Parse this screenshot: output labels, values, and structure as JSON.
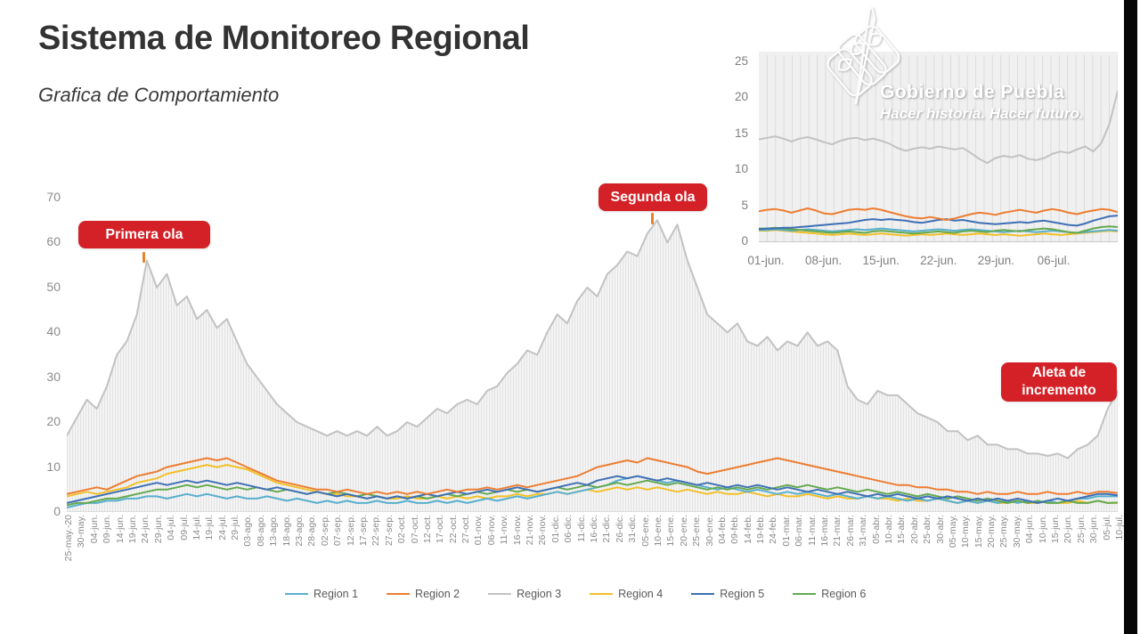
{
  "header": {
    "title": "Sistema de Monitoreo Regional",
    "subtitle": "Grafica de Comportamiento"
  },
  "logo": {
    "org": "Gobierno de Puebla",
    "tagline": "Hacer historia. Hacer futuro."
  },
  "annotations": {
    "first_wave": "Primera ola",
    "second_wave": "Segunda ola",
    "increase_alert": "Aleta de incremento"
  },
  "legend": {
    "items": [
      {
        "label": "Region 1",
        "color": "#58AFCE"
      },
      {
        "label": "Region 2",
        "color": "#ED7D31"
      },
      {
        "label": "Region 3",
        "color": "#C2C2C2"
      },
      {
        "label": "Region 4",
        "color": "#F2C029"
      },
      {
        "label": "Region 5",
        "color": "#3E6FB5"
      },
      {
        "label": "Region 6",
        "color": "#64A950"
      }
    ]
  },
  "chart_data": [
    {
      "id": "main",
      "type": "line",
      "title": "Grafica de Comportamiento",
      "xlabel": "",
      "ylabel": "",
      "ylim": [
        0,
        70
      ],
      "yticks": [
        0,
        10,
        20,
        30,
        40,
        50,
        60,
        70
      ],
      "grid": "vertical-daily-under-gray-area",
      "legend_position": "bottom",
      "x_tick_labels": [
        "25-may.-20",
        "30-may.",
        "04-jun.",
        "09-jun.",
        "14-jun.",
        "19-jun.",
        "24-jun.",
        "29-jun.",
        "04-jul.",
        "09-jul.",
        "14-jul.",
        "19-jul.",
        "24-jul.",
        "29-jul.",
        "03-ago.",
        "08-ago.",
        "13-ago.",
        "18-ago.",
        "23-ago.",
        "28-ago.",
        "02-sep.",
        "07-sep.",
        "12-sep.",
        "17-sep.",
        "22-sep.",
        "27-sep.",
        "02-oct.",
        "07-oct.",
        "12-oct.",
        "17-oct.",
        "22-oct.",
        "27-oct.",
        "01-nov.",
        "06-nov.",
        "11-nov.",
        "16-nov.",
        "21-nov.",
        "26-nov.",
        "01-dic.",
        "06-dic.",
        "11-dic.",
        "16-dic.",
        "21-dic.",
        "26-dic.",
        "31-dic.",
        "05-ene.",
        "10-ene.",
        "15-ene.",
        "20-ene.",
        "25-ene.",
        "30-ene.",
        "04-feb.",
        "09-feb.",
        "14-feb.",
        "19-feb.",
        "24-feb.",
        "01-mar.",
        "06-mar.",
        "11-mar.",
        "16-mar.",
        "21-mar.",
        "26-mar.",
        "31-mar.",
        "05-abr.",
        "10-abr.",
        "15-abr.",
        "20-abr.",
        "25-abr.",
        "30-abr.",
        "05-may.",
        "10-may.",
        "15-may.",
        "20-may.",
        "25-may.",
        "30-may.",
        "04-jun.",
        "10-jun.",
        "15-jun.",
        "20-jun.",
        "25-jun.",
        "30-jun.",
        "05-jul.",
        "10-jul."
      ],
      "series": [
        {
          "name": "Region 1",
          "color": "#58AFCE",
          "values": [
            1,
            1.5,
            2,
            2,
            2.5,
            2.5,
            3,
            3,
            3.5,
            3.5,
            3,
            3.5,
            4,
            3.5,
            4,
            3.5,
            3,
            3.5,
            3,
            3,
            3.5,
            3,
            2.5,
            3,
            2.5,
            2,
            2.5,
            2,
            2.5,
            2,
            2,
            2.5,
            2,
            2,
            2.5,
            2,
            2,
            2.5,
            2,
            2.5,
            2,
            2.5,
            3,
            2.5,
            3,
            3.5,
            3,
            3.5,
            4,
            4.5,
            4,
            4.5,
            5,
            5.5,
            6,
            7,
            7.5,
            8,
            7.5,
            7,
            6.5,
            7,
            6.5,
            6,
            5.5,
            5,
            5.5,
            5,
            4.5,
            5,
            4.5,
            4,
            4.5,
            4,
            4.5,
            4,
            3.5,
            4,
            3.5,
            3,
            3.5,
            3,
            3.5,
            3,
            2.5,
            3,
            2.5,
            3,
            2.5,
            2,
            2.5,
            2,
            2.5,
            2,
            2.5,
            2,
            2.5,
            2,
            2.5,
            2,
            2.5,
            3,
            3,
            3.5,
            3.5,
            3.5
          ]
        },
        {
          "name": "Region 2",
          "color": "#ED7D31",
          "values": [
            4,
            4.5,
            5,
            5.5,
            5,
            6,
            7,
            8,
            8.5,
            9,
            10,
            10.5,
            11,
            11.5,
            12,
            11.5,
            12,
            11,
            10,
            9,
            8,
            7,
            6.5,
            6,
            5.5,
            5,
            5,
            4.5,
            5,
            4.5,
            4,
            4.5,
            4,
            4.5,
            4,
            4.5,
            4,
            4.5,
            5,
            4.5,
            5,
            5,
            5.5,
            5,
            5.5,
            6,
            5.5,
            6,
            6.5,
            7,
            7.5,
            8,
            9,
            10,
            10.5,
            11,
            11.5,
            11,
            12,
            11.5,
            11,
            10.5,
            10,
            9,
            8.5,
            9,
            9.5,
            10,
            10.5,
            11,
            11.5,
            12,
            11.5,
            11,
            10.5,
            10,
            9.5,
            9,
            8.5,
            8,
            7.5,
            7,
            6.5,
            6,
            6,
            5.5,
            5.5,
            5,
            5,
            4.5,
            4.5,
            4,
            4.5,
            4,
            4,
            4.5,
            4,
            4,
            4.5,
            4,
            4,
            4.5,
            4,
            4.5,
            4.5,
            4.2
          ]
        },
        {
          "name": "Region 3",
          "color": "#C2C2C2",
          "area_fill": true,
          "values": [
            17,
            21,
            25,
            23,
            28,
            35,
            38,
            44,
            56,
            50,
            53,
            46,
            48,
            43,
            45,
            41,
            43,
            38,
            33,
            30,
            27,
            24,
            22,
            20,
            19,
            18,
            17,
            18,
            17,
            18,
            17,
            19,
            17,
            18,
            20,
            19,
            21,
            23,
            22,
            24,
            25,
            24,
            27,
            28,
            31,
            33,
            36,
            35,
            40,
            44,
            42,
            47,
            50,
            48,
            53,
            55,
            58,
            57,
            62,
            65,
            60,
            64,
            56,
            50,
            44,
            42,
            40,
            42,
            38,
            37,
            39,
            36,
            38,
            37,
            40,
            37,
            38,
            36,
            28,
            25,
            24,
            27,
            26,
            26,
            24,
            22,
            21,
            20,
            18,
            18,
            16,
            17,
            15,
            15,
            14,
            14,
            13,
            13,
            12.5,
            13,
            12,
            14,
            15,
            17,
            23,
            27
          ]
        },
        {
          "name": "Region 4",
          "color": "#F2C029",
          "values": [
            3.5,
            4,
            4.5,
            4,
            4.5,
            5,
            5.5,
            6.5,
            7,
            7.5,
            8.5,
            9,
            9.5,
            10,
            10.5,
            10,
            10.5,
            10,
            9.5,
            8.5,
            7.5,
            6.5,
            6,
            5.5,
            5,
            4.5,
            4,
            4,
            3.5,
            3.5,
            3,
            3.5,
            3,
            3,
            3.5,
            3,
            3,
            3.5,
            3,
            3.5,
            3,
            3.5,
            3,
            3.5,
            3.5,
            4,
            3.5,
            4,
            4,
            4.5,
            4,
            4.5,
            5,
            4.5,
            5,
            5.5,
            5,
            5.5,
            5,
            5.5,
            5,
            4.5,
            5,
            4.5,
            4,
            4.5,
            4,
            4,
            4.5,
            4,
            3.5,
            4,
            3.5,
            3.5,
            4,
            3.5,
            3,
            3.5,
            3,
            3,
            3.5,
            3,
            3,
            2.5,
            3,
            2.5,
            2.5,
            3,
            2.5,
            2,
            2.5,
            2,
            2.5,
            2,
            2,
            2.5,
            2,
            2,
            2.5,
            2,
            2,
            2.5,
            2,
            2.5,
            2,
            2
          ]
        },
        {
          "name": "Region 5",
          "color": "#3E6FB5",
          "values": [
            2,
            2.5,
            3,
            3.5,
            4,
            4.5,
            5,
            5.5,
            6,
            6.5,
            6,
            6.5,
            7,
            6.5,
            7,
            6.5,
            6,
            6.5,
            6,
            5.5,
            5,
            5.5,
            5,
            4.5,
            4,
            4.5,
            4,
            3.5,
            4,
            3.5,
            3,
            3.5,
            3,
            3.5,
            3,
            3.5,
            4,
            3.5,
            4,
            4.5,
            4,
            4.5,
            5,
            4.5,
            5,
            5.5,
            5,
            4.5,
            5,
            5.5,
            6,
            6.5,
            6,
            7,
            7.5,
            8,
            7.5,
            8,
            7.5,
            7,
            7.5,
            7,
            6.5,
            6,
            6.5,
            6,
            5.5,
            6,
            5.5,
            6,
            5.5,
            5,
            5.5,
            5,
            4.5,
            5,
            4.5,
            4,
            4.5,
            4,
            3.5,
            4,
            3.5,
            4,
            3.5,
            3,
            3.5,
            3,
            3.5,
            3,
            2.5,
            3,
            2.5,
            3,
            2.5,
            3,
            2.5,
            2,
            2.5,
            3,
            2.5,
            3,
            3.5,
            4,
            4,
            3.7
          ]
        },
        {
          "name": "Region 6",
          "color": "#64A950",
          "values": [
            1.5,
            2,
            2,
            2.5,
            3,
            3,
            3.5,
            4,
            4.5,
            5,
            5,
            5.5,
            6,
            5.5,
            6,
            5.5,
            5,
            5.5,
            5,
            5.5,
            5,
            4.5,
            5,
            4.5,
            4,
            4.5,
            4,
            4.5,
            4,
            3.5,
            4,
            3.5,
            3,
            3.5,
            3,
            3.5,
            3,
            3.5,
            4,
            3.5,
            4,
            4.5,
            4,
            4.5,
            5,
            4.5,
            5,
            4.5,
            5,
            5.5,
            5,
            5.5,
            6,
            5.5,
            6,
            6.5,
            6,
            6.5,
            7,
            6.5,
            6,
            6.5,
            6,
            5.5,
            5,
            5.5,
            5,
            5.5,
            5,
            5.5,
            5,
            5.5,
            6,
            5.5,
            6,
            5.5,
            5,
            5.5,
            5,
            4.5,
            5,
            4.5,
            4,
            4.5,
            4,
            3.5,
            4,
            3.5,
            3,
            3.5,
            3,
            2.5,
            3,
            2.5,
            2,
            2.5,
            2,
            2.5,
            2,
            2,
            2.5,
            2,
            2,
            2.5,
            2,
            2.1
          ]
        }
      ]
    },
    {
      "id": "inset",
      "type": "line",
      "title": "",
      "xlabel": "",
      "ylabel": "",
      "ylim": [
        0,
        25
      ],
      "yticks": [
        0,
        5,
        10,
        15,
        20,
        25
      ],
      "grid": "vertical-daily",
      "legend_position": "none",
      "x_tick_labels": [
        "01-jun.",
        "08-jun.",
        "15-jun.",
        "22-jun.",
        "29-jun.",
        "06-jul."
      ],
      "series": [
        {
          "name": "Region 1",
          "color": "#58AFCE",
          "values": [
            1.7,
            1.7,
            1.8,
            1.7,
            1.6,
            1.7,
            1.8,
            1.7,
            1.6,
            1.5,
            1.6,
            1.7,
            1.8,
            1.7,
            1.8,
            1.9,
            1.8,
            1.7,
            1.6,
            1.5,
            1.6,
            1.7,
            1.8,
            1.7,
            1.6,
            1.7,
            1.8,
            1.7,
            1.6,
            1.5,
            1.4,
            1.5,
            1.6,
            1.5,
            1.4,
            1.5,
            1.6,
            1.5,
            1.4,
            1.3,
            1.4,
            1.5,
            1.6,
            1.7,
            1.6
          ]
        },
        {
          "name": "Region 2",
          "color": "#ED7D31",
          "values": [
            4.3,
            4.5,
            4.6,
            4.4,
            4.1,
            4.4,
            4.7,
            4.4,
            4.0,
            3.9,
            4.2,
            4.5,
            4.6,
            4.5,
            4.7,
            4.5,
            4.2,
            3.9,
            3.6,
            3.4,
            3.3,
            3.5,
            3.3,
            3.1,
            3.3,
            3.6,
            3.9,
            4.1,
            4.0,
            3.8,
            4.1,
            4.3,
            4.5,
            4.3,
            4.1,
            4.4,
            4.6,
            4.4,
            4.1,
            3.9,
            4.2,
            4.4,
            4.6,
            4.5,
            4.2
          ]
        },
        {
          "name": "Region 3",
          "color": "#C2C2C2",
          "values": [
            14.3,
            14.5,
            14.7,
            14.4,
            14.0,
            14.4,
            14.6,
            14.3,
            13.9,
            13.6,
            14.1,
            14.4,
            14.5,
            14.2,
            14.4,
            14.1,
            13.7,
            13.1,
            12.7,
            13.0,
            13.2,
            13.0,
            13.3,
            13.1,
            12.9,
            13.1,
            12.4,
            11.6,
            11.0,
            11.7,
            12.0,
            11.8,
            12.1,
            11.6,
            11.4,
            11.7,
            12.3,
            12.6,
            12.4,
            12.9,
            13.3,
            12.6,
            13.8,
            16.5,
            21.0
          ]
        },
        {
          "name": "Region 4",
          "color": "#F2C029",
          "values": [
            1.6,
            1.6,
            1.7,
            1.6,
            1.5,
            1.4,
            1.3,
            1.2,
            1.1,
            1.0,
            1.1,
            1.2,
            1.1,
            1.0,
            1.1,
            1.2,
            1.1,
            1.0,
            0.9,
            1.0,
            1.1,
            1.0,
            1.1,
            1.2,
            1.1,
            1.0,
            1.1,
            1.2,
            1.1,
            1.0,
            1.1,
            1.0,
            0.9,
            1.0,
            1.1,
            1.2,
            1.1,
            1.0,
            1.1,
            1.2,
            1.3,
            1.4,
            1.5,
            1.6,
            1.5
          ]
        },
        {
          "name": "Region 5",
          "color": "#3E6FB5",
          "values": [
            1.8,
            1.9,
            1.9,
            2.0,
            2.0,
            2.1,
            2.2,
            2.3,
            2.4,
            2.5,
            2.6,
            2.7,
            2.9,
            3.1,
            3.2,
            3.1,
            3.2,
            3.1,
            3.0,
            2.8,
            2.7,
            2.9,
            3.1,
            3.2,
            3.0,
            3.1,
            2.9,
            2.7,
            2.6,
            2.5,
            2.6,
            2.7,
            2.8,
            2.7,
            2.9,
            3.0,
            2.8,
            2.6,
            2.4,
            2.3,
            2.6,
            3.0,
            3.3,
            3.6,
            3.7
          ]
        },
        {
          "name": "Region 6",
          "color": "#64A950",
          "values": [
            1.9,
            1.9,
            2.0,
            1.9,
            1.8,
            1.7,
            1.6,
            1.5,
            1.4,
            1.3,
            1.4,
            1.5,
            1.4,
            1.3,
            1.5,
            1.6,
            1.5,
            1.4,
            1.3,
            1.2,
            1.3,
            1.4,
            1.5,
            1.4,
            1.3,
            1.5,
            1.6,
            1.5,
            1.4,
            1.6,
            1.7,
            1.6,
            1.5,
            1.7,
            1.8,
            1.9,
            1.8,
            1.6,
            1.4,
            1.3,
            1.6,
            1.9,
            2.1,
            2.2,
            2.1
          ]
        }
      ]
    }
  ]
}
